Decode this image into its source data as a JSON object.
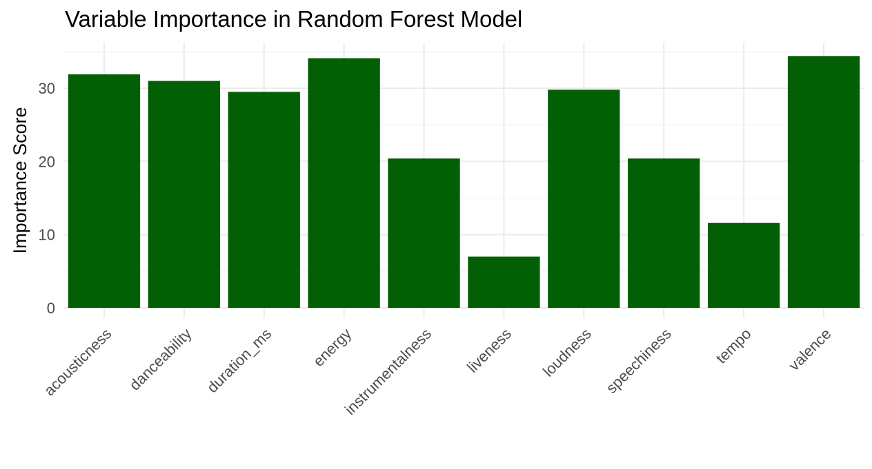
{
  "chart_data": {
    "type": "bar",
    "title": "Variable Importance in Random Forest Model",
    "xlabel": "",
    "ylabel": "Importance Score",
    "categories": [
      "acousticness",
      "danceability",
      "duration_ms",
      "energy",
      "instrumentalness",
      "liveness",
      "loudness",
      "speechiness",
      "tempo",
      "valence"
    ],
    "values": [
      31.9,
      31.0,
      29.5,
      34.1,
      20.4,
      7.0,
      29.8,
      20.4,
      11.6,
      34.4
    ],
    "yticks": [
      0,
      10,
      20,
      30
    ],
    "ylim": [
      0,
      35
    ],
    "grid": true,
    "legend": "none",
    "bar_color": "#035f03"
  }
}
